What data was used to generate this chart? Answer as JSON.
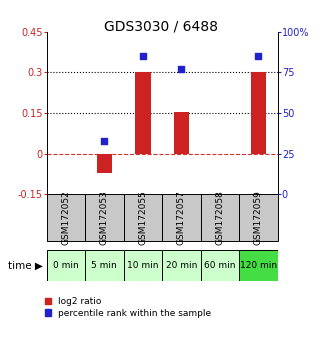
{
  "title": "GDS3030 / 6488",
  "samples": [
    "GSM172052",
    "GSM172053",
    "GSM172055",
    "GSM172057",
    "GSM172058",
    "GSM172059"
  ],
  "time_labels": [
    "0 min",
    "5 min",
    "10 min",
    "20 min",
    "60 min",
    "120 min"
  ],
  "log2_ratio": [
    0.0,
    -0.07,
    0.3,
    0.155,
    0.0,
    0.3
  ],
  "percentile_rank": [
    null,
    33,
    85,
    77,
    null,
    85
  ],
  "ylim_left": [
    -0.15,
    0.45
  ],
  "ylim_right": [
    0,
    100
  ],
  "yticks_left": [
    -0.15,
    0.0,
    0.15,
    0.3,
    0.45
  ],
  "yticks_right": [
    0,
    25,
    50,
    75,
    100
  ],
  "bar_color": "#cc2222",
  "scatter_color": "#2222cc",
  "bg_sample_gray": "#c8c8c8",
  "bg_time_light_green": "#ccffcc",
  "bg_time_dark_green": "#44dd44",
  "title_fontsize": 10,
  "tick_fontsize": 7,
  "sample_fontsize": 6.5,
  "time_fontsize": 7
}
